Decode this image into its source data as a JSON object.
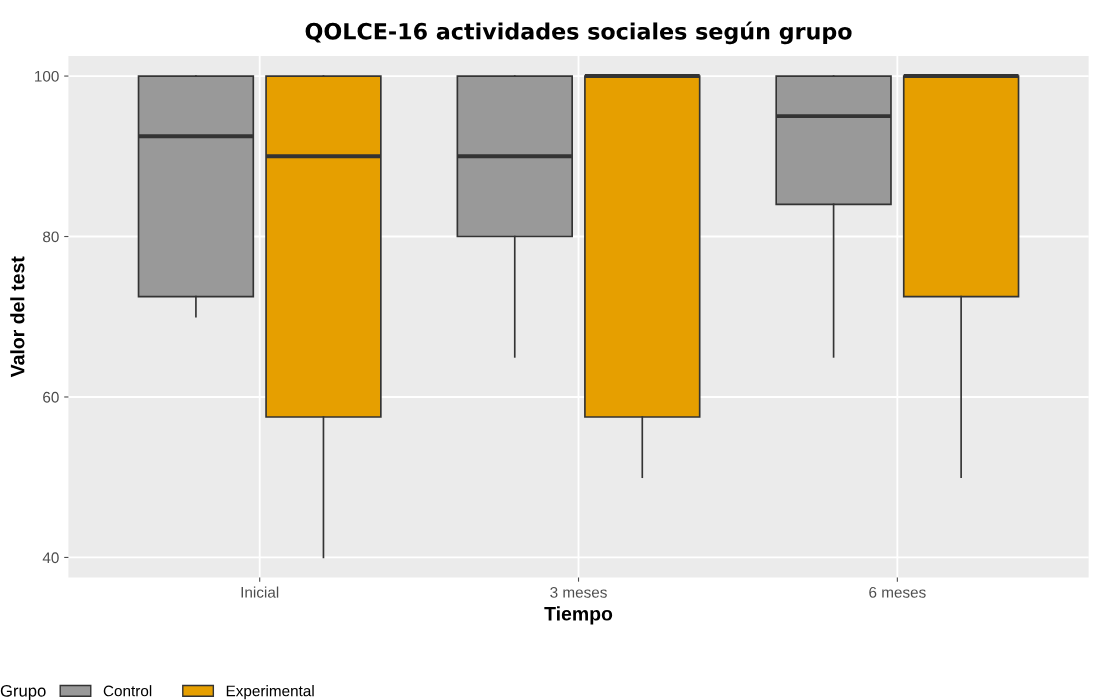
{
  "chart_data": {
    "type": "box",
    "title": "QOLCE-16 actividades sociales según grupo",
    "xlabel": "Tiempo",
    "ylabel": "Valor del test",
    "legend_title": "Grupo",
    "categories": [
      "Inicial",
      "3 meses",
      "6 meses"
    ],
    "series": [
      {
        "name": "Control",
        "color": "#999999",
        "boxes": [
          {
            "low": 70,
            "q1": 72.5,
            "median": 92.5,
            "q3": 100,
            "high": 100
          },
          {
            "low": 65,
            "q1": 80,
            "median": 90,
            "q3": 100,
            "high": 100
          },
          {
            "low": 65,
            "q1": 84,
            "median": 95,
            "q3": 100,
            "high": 100
          }
        ]
      },
      {
        "name": "Experimental",
        "color": "#e69f00",
        "boxes": [
          {
            "low": 40,
            "q1": 57.5,
            "median": 90,
            "q3": 100,
            "high": 100
          },
          {
            "low": 50,
            "q1": 57.5,
            "median": 100,
            "q3": 100,
            "high": 100
          },
          {
            "low": 50,
            "q1": 72.5,
            "median": 100,
            "q3": 100,
            "high": 100
          }
        ]
      }
    ],
    "ylim": [
      37.5,
      102.5
    ],
    "yticks": [
      40,
      60,
      80,
      100
    ],
    "grid": true,
    "legend": "bottom"
  }
}
